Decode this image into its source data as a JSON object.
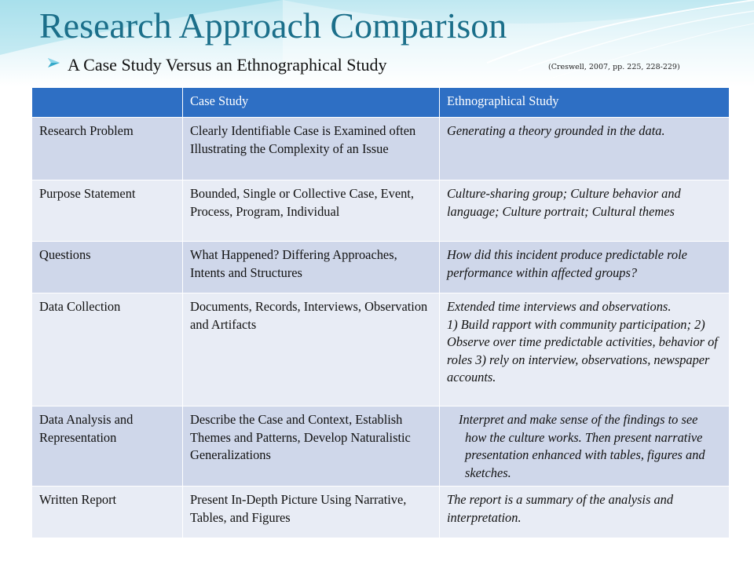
{
  "slide": {
    "title": "Research Approach Comparison",
    "subtitle": "A Case Study Versus an Ethnographical  Study",
    "citation": "(Creswell, 2007, pp. 225, 228-229)",
    "bullet_icon": "arrow-bullet-icon",
    "accent_color": "#1b6f8a",
    "header_fill_color": "#2e6fc4"
  },
  "table": {
    "headers": [
      "",
      "Case Study",
      "Ethnographical  Study"
    ],
    "rows": [
      {
        "aspect": "Research Problem",
        "case_study": "Clearly Identifiable Case is Examined often Illustrating the Complexity of an Issue",
        "ethnography": "Generating a theory grounded in the data."
      },
      {
        "aspect": "Purpose Statement",
        "case_study": "Bounded, Single or Collective Case, Event, Process, Program, Individual",
        "ethnography": "Culture-sharing group;  Culture behavior and language; Culture portrait; Cultural themes"
      },
      {
        "aspect": "Questions",
        "case_study": "What Happened? Differing Approaches, Intents and Structures",
        "ethnography": "How did this incident produce predictable role performance within affected groups?"
      },
      {
        "aspect": "Data Collection",
        "case_study_lines": [
          "Documents, Records, Interviews, Observation",
          "and Artifacts"
        ],
        "ethnography_lines": [
          "Extended time interviews and observations.",
          "1) Build rapport with community participation; 2) Observe over time predictable activities, behavior of roles 3) rely on interview, observations, newspaper accounts."
        ]
      },
      {
        "aspect": "Data Analysis and Representation",
        "case_study": "Describe the Case and Context, Establish Themes and Patterns, Develop Naturalistic Generalizations",
        "ethnography": "Interpret and make sense of the findings to see how the culture works.  Then present narrative presentation enhanced with tables, figures and sketches."
      },
      {
        "aspect": "Written Report",
        "case_study": "Present In-Depth Picture Using Narrative, Tables, and Figures",
        "ethnography": "The report is a summary of the analysis and interpretation."
      }
    ]
  }
}
